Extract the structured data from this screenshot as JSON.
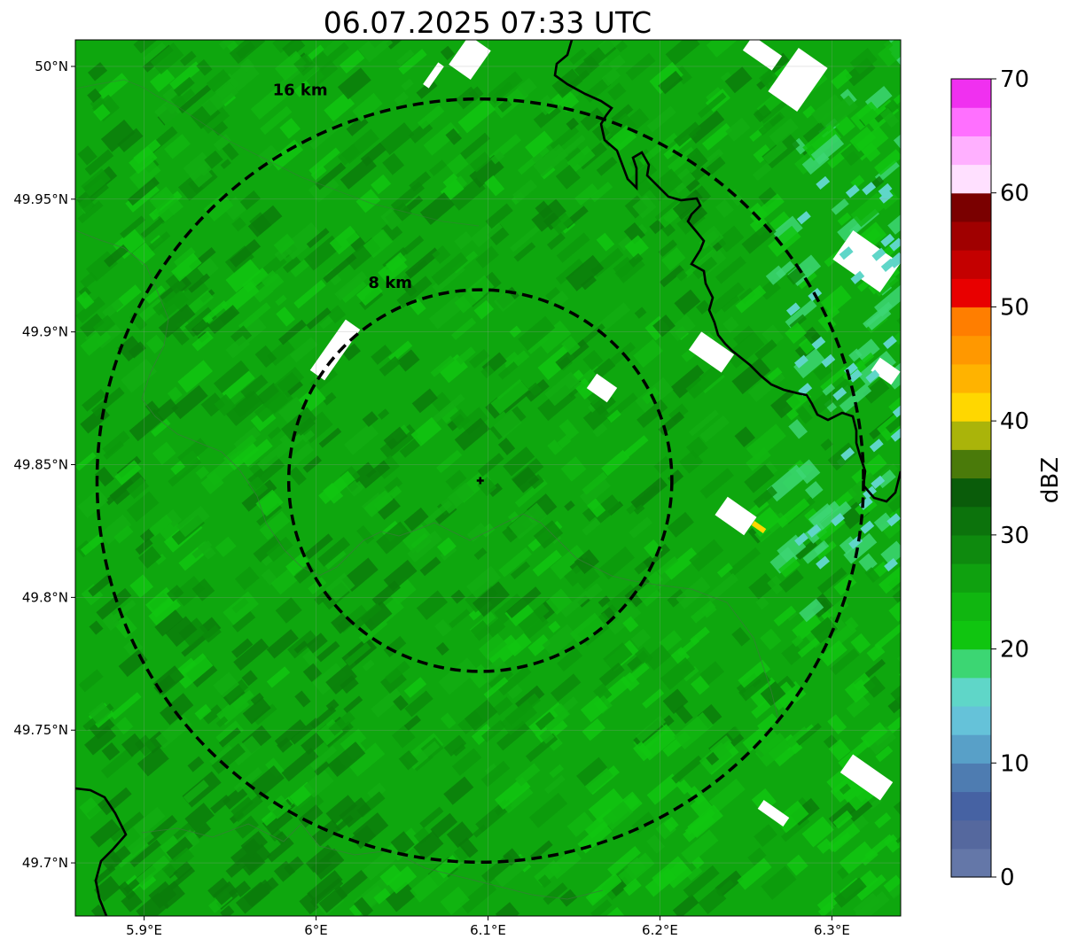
{
  "title": "06.07.2025 07:33 UTC",
  "map": {
    "lon_range": [
      5.86,
      6.34
    ],
    "lat_range": [
      49.68,
      50.01
    ],
    "x_ticks": [
      {
        "value": 5.9,
        "label": "5.9°E"
      },
      {
        "value": 6.0,
        "label": "6°E"
      },
      {
        "value": 6.1,
        "label": "6.1°E"
      },
      {
        "value": 6.2,
        "label": "6.2°E"
      },
      {
        "value": 6.3,
        "label": "6.3°E"
      }
    ],
    "y_ticks": [
      {
        "value": 50.0,
        "label": "50°N"
      },
      {
        "value": 49.95,
        "label": "49.95°N"
      },
      {
        "value": 49.9,
        "label": "49.9°N"
      },
      {
        "value": 49.85,
        "label": "49.85°N"
      },
      {
        "value": 49.8,
        "label": "49.8°N"
      },
      {
        "value": 49.75,
        "label": "49.75°N"
      },
      {
        "value": 49.7,
        "label": "49.7°N"
      }
    ],
    "radar_center": {
      "lon": 6.0955,
      "lat": 49.844
    },
    "range_rings": [
      {
        "radius_km": 8,
        "label": "8 km"
      },
      {
        "radius_km": 16,
        "label": "16 km"
      }
    ],
    "base_echo_color": "#0ea70e"
  },
  "colorbar": {
    "label": "dBZ",
    "min": 0,
    "max": 70,
    "ticks": [
      {
        "value": 0,
        "label": "0"
      },
      {
        "value": 10,
        "label": "10"
      },
      {
        "value": 20,
        "label": "20"
      },
      {
        "value": 30,
        "label": "30"
      },
      {
        "value": 40,
        "label": "40"
      },
      {
        "value": 50,
        "label": "50"
      },
      {
        "value": 60,
        "label": "60"
      },
      {
        "value": 70,
        "label": "70"
      }
    ],
    "colors": [
      "#6477a8",
      "#55689e",
      "#4662a3",
      "#4e7cb1",
      "#58a0c8",
      "#65c2d9",
      "#5fd6c8",
      "#3cd673",
      "#10c510",
      "#10b610",
      "#0fa10f",
      "#0e8a0e",
      "#0c730c",
      "#0a5c0a",
      "#4a7a0a",
      "#aab40a",
      "#ffd700",
      "#ffb300",
      "#ff9800",
      "#ff7e00",
      "#e80000",
      "#c40000",
      "#a00000",
      "#7a0000",
      "#ffe0ff",
      "#ffb0ff",
      "#ff70ff",
      "#f030f0"
    ]
  }
}
